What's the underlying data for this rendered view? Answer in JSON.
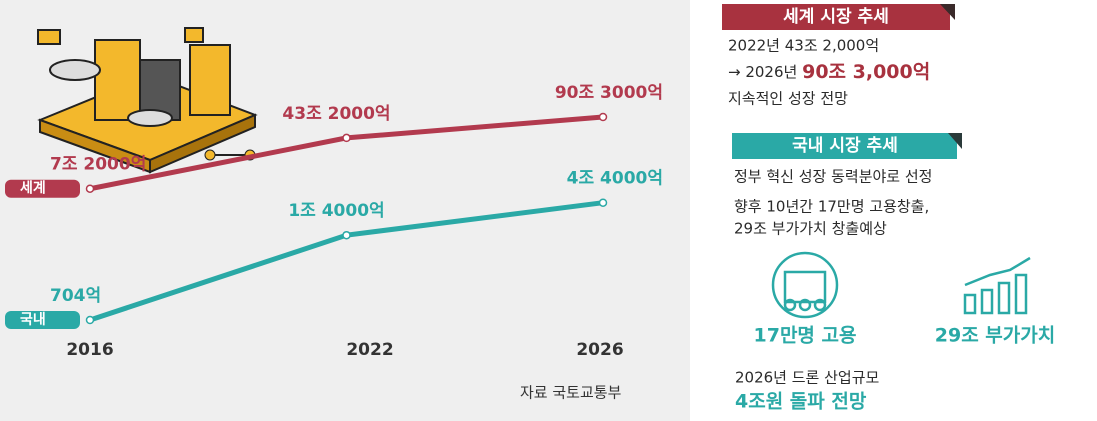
{
  "chart_data": {
    "type": "line",
    "log_scale": true,
    "categories": [
      "2016",
      "2022",
      "2026"
    ],
    "series": [
      {
        "name": "세계",
        "color": "#b23a4e",
        "values": [
          72000,
          432000,
          903000
        ],
        "value_labels": [
          "7조 2000억",
          "43조 2000억",
          "90조 3000억"
        ]
      },
      {
        "name": "국내",
        "color": "#2aa9a6",
        "values": [
          704,
          14000,
          44000
        ],
        "value_labels": [
          "704억",
          "1조 4000억",
          "4조 4000억"
        ]
      }
    ],
    "source": "자료 국토교통부"
  },
  "world": {
    "heading": "세계 시장 추세",
    "line1": "2022년 43조 2,000억",
    "line2_prefix": "→ 2026년 ",
    "line2_emphasis": "90조 3,000억",
    "line3": "지속적인 성장 전망"
  },
  "domestic": {
    "heading": "국내 시장 추세",
    "line1": "정부 혁신 성장 동력분야로 선정",
    "line2": "향후 10년간 17만명 고용창출,",
    "line3": "29조 부가가치 창출예상"
  },
  "icons": [
    "17만명 고용",
    "29조 부가가치"
  ],
  "outlook": {
    "line1": "2026년 드론 산업규모",
    "line2": "4조원 돌파 전망"
  }
}
